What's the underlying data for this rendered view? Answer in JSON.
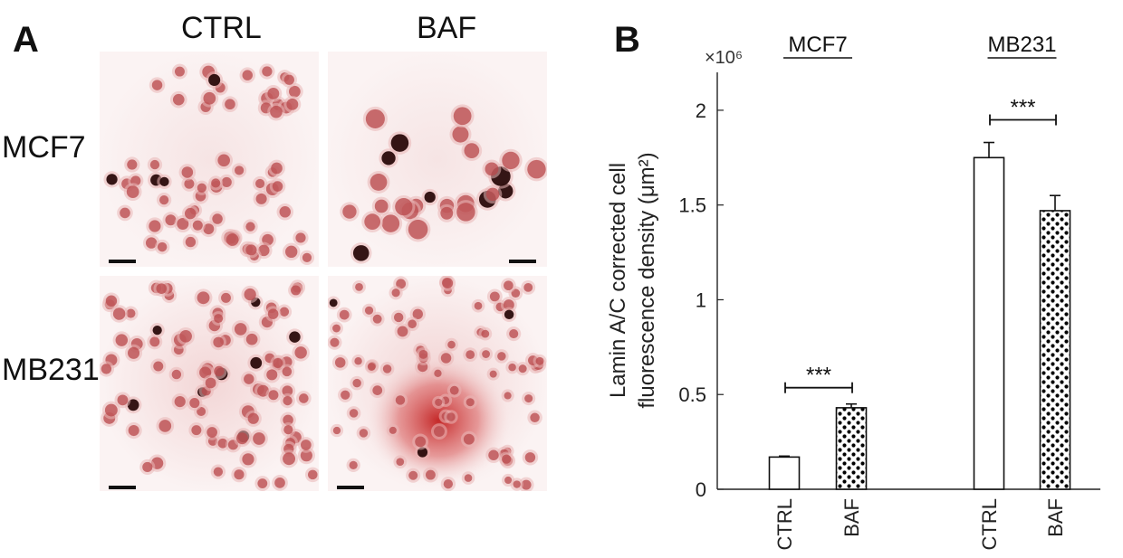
{
  "panel_a": {
    "letter": "A",
    "columns": [
      "CTRL",
      "BAF"
    ],
    "rows": [
      "MCF7",
      "MB231"
    ]
  },
  "panel_b": {
    "letter": "B"
  },
  "chart_data": {
    "type": "bar",
    "title": "",
    "ylabel_line1": "Lamin A/C corrected cell",
    "ylabel_line2": "fluorescence density (μm²)",
    "y_multiplier": "×10⁶",
    "ylim": [
      0,
      2.2
    ],
    "yticks": [
      0,
      0.5,
      1,
      1.5,
      2
    ],
    "ytick_labels": [
      "0",
      "0.5",
      "1",
      "1.5",
      "2"
    ],
    "groups": [
      {
        "name": "MCF7",
        "significance": "***",
        "bars": [
          {
            "label": "CTRL",
            "value": 0.17,
            "error": 0.005,
            "pattern": "plain"
          },
          {
            "label": "BAF",
            "value": 0.43,
            "error": 0.02,
            "pattern": "dotted"
          }
        ]
      },
      {
        "name": "MB231",
        "significance": "***",
        "bars": [
          {
            "label": "CTRL",
            "value": 1.75,
            "error": 0.08,
            "pattern": "plain"
          },
          {
            "label": "BAF",
            "value": 1.47,
            "error": 0.08,
            "pattern": "dotted"
          }
        ]
      }
    ]
  }
}
